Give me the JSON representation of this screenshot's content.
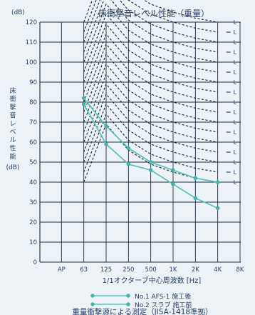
{
  "chart_data": {
    "type": "line",
    "title": "床衝撃音レベル性能（重量）",
    "ylabel": "床衝撃音レベル性能 (dB)",
    "y_unit_label": "(dB)",
    "ylabel_unit": "(dB)",
    "xlabel": "1/1オクターブ中心周波数 [Hz]",
    "caption": "重量衝撃源による測定（JISA-1418準拠）",
    "ylim": [
      0,
      120
    ],
    "yticks": [
      0,
      10,
      20,
      30,
      40,
      50,
      60,
      70,
      80,
      90,
      100,
      110,
      120
    ],
    "categories": [
      "AP",
      "63",
      "125",
      "250",
      "500",
      "1K",
      "2K",
      "4K",
      "8K"
    ],
    "grid": true,
    "series": [
      {
        "name": "No.1 AFS-1 施工後",
        "x": [
          "63",
          "125",
          "250",
          "500",
          "1K",
          "2K",
          "4K"
        ],
        "values": [
          82,
          68,
          57,
          50,
          46,
          42,
          40
        ]
      },
      {
        "name": "No.2 スラブ 施工前",
        "x": [
          "63",
          "125",
          "250",
          "500",
          "1K",
          "2K",
          "4K"
        ],
        "values": [
          79,
          59,
          49,
          46,
          39,
          32,
          27
        ]
      }
    ],
    "reference_curves": {
      "style": "dashed",
      "label_prefix": "L",
      "label_side": "right",
      "offsets": [
        -25,
        -20,
        -15,
        -10,
        -5,
        0,
        5,
        10,
        15,
        20,
        25,
        30,
        35,
        40,
        45,
        50,
        55
      ],
      "count": 17
    },
    "legend": {
      "position": "bottom",
      "entries": [
        {
          "label": "No.1  AFS-1  施工後"
        },
        {
          "label": "No.2  スラブ  施工前"
        }
      ]
    },
    "colors": {
      "series": "#5cc3b8",
      "markers": "#45b3a8",
      "grid": "#1e2a40",
      "text": "#2a3f66",
      "background": "#ecf2f6"
    }
  }
}
